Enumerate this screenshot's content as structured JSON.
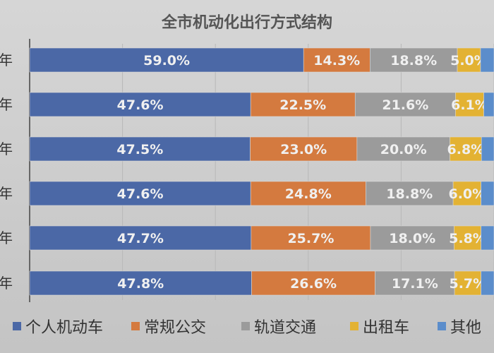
{
  "chart_data": {
    "type": "bar",
    "orientation": "horizontal",
    "stacked": true,
    "title": "全市机动化出行方式结构",
    "categories": [
      "年",
      "年",
      "年",
      "年",
      "年",
      "年"
    ],
    "xlim": [
      0,
      100
    ],
    "grid": true,
    "legend_placement": "bottom",
    "series": [
      {
        "name": "个人机动车",
        "color": "#4b68a6",
        "values": [
          59.0,
          47.6,
          47.5,
          47.6,
          47.7,
          47.8
        ],
        "labels": [
          "59.0%",
          "47.6%",
          "47.5%",
          "47.6%",
          "47.7%",
          "47.8%"
        ]
      },
      {
        "name": "常规公交",
        "color": "#d47a3f",
        "values": [
          14.3,
          22.5,
          23.0,
          24.8,
          25.7,
          26.6
        ],
        "labels": [
          "14.3%",
          "22.5%",
          "23.0%",
          "24.8%",
          "25.7%",
          "26.6%"
        ]
      },
      {
        "name": "轨道交通",
        "color": "#9b9b9b",
        "values": [
          18.8,
          21.6,
          20.0,
          18.8,
          18.0,
          17.1
        ],
        "labels": [
          "18.8%",
          "21.6%",
          "20.0%",
          "18.8%",
          "18.0%",
          "17.1%"
        ]
      },
      {
        "name": "出租车",
        "color": "#e3b233",
        "values": [
          5.0,
          6.1,
          6.8,
          6.0,
          5.8,
          5.7
        ],
        "labels": [
          "5.0%",
          "6.1%",
          "6.8%",
          "6.0%",
          "5.8%",
          "5.7%"
        ]
      },
      {
        "name": "其他",
        "color": "#5b8dcb",
        "values": [
          2.9,
          2.2,
          2.7,
          2.8,
          2.8,
          2.8
        ],
        "labels": [
          "",
          "",
          "",
          "",
          "",
          ""
        ]
      }
    ]
  }
}
